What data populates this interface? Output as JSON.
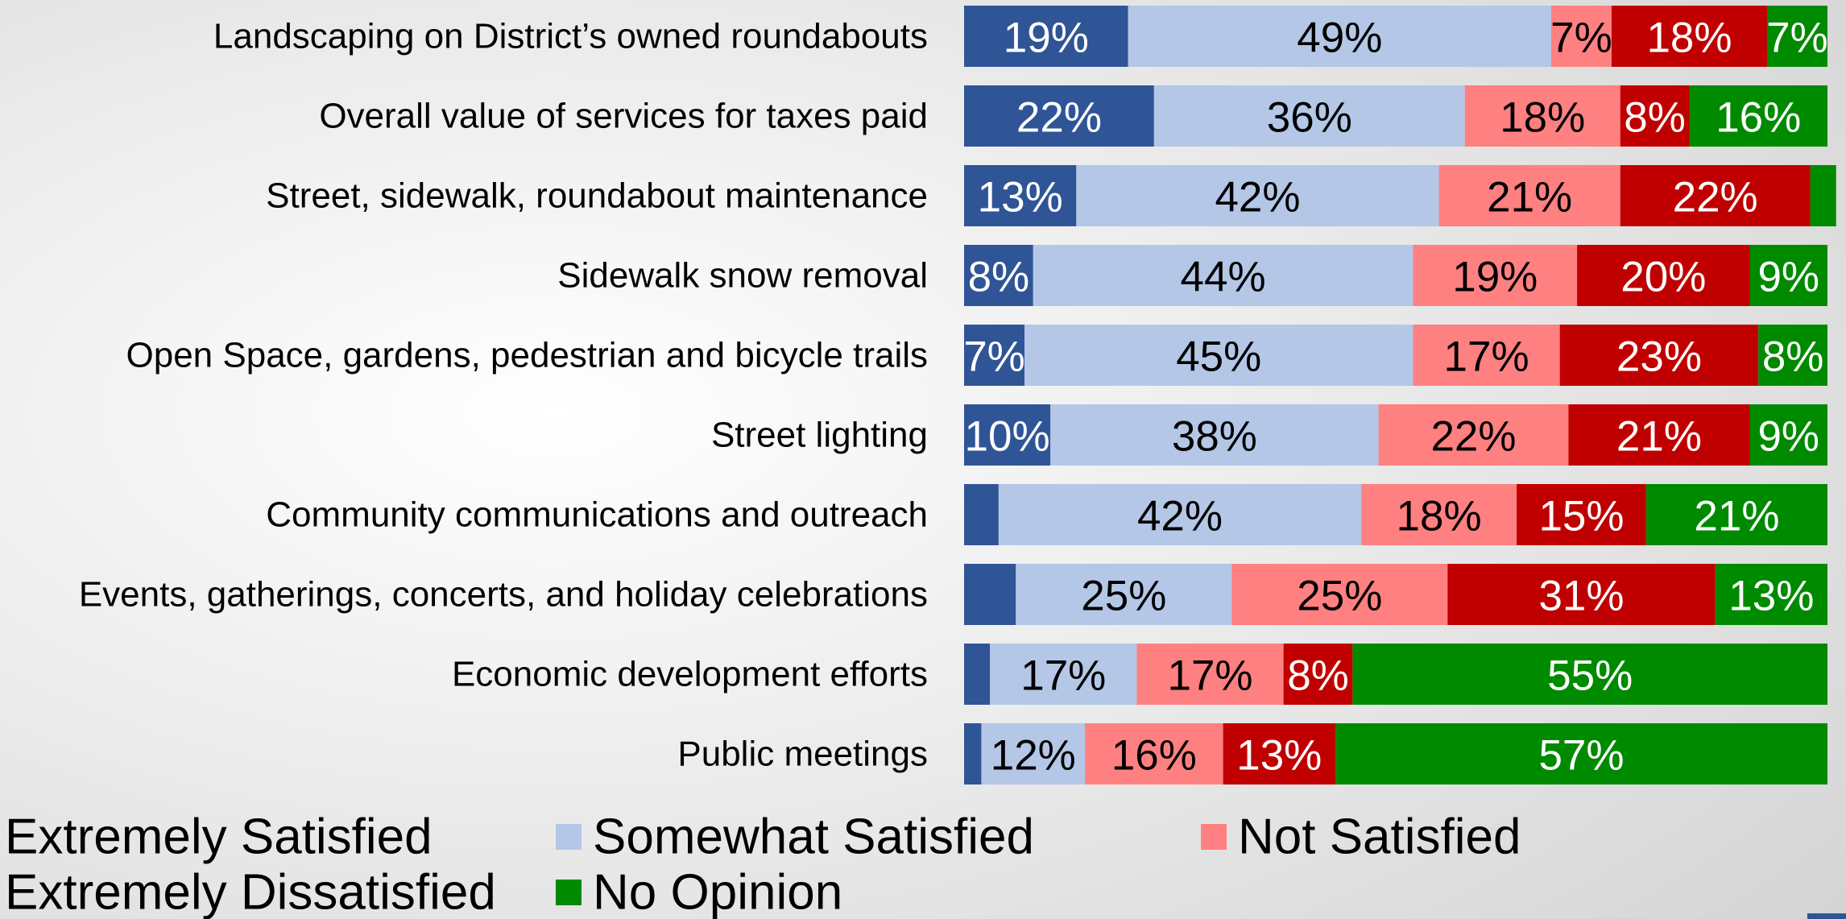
{
  "chart_data": {
    "type": "stacked-bar-horizontal",
    "categories": [
      "Landscaping on District’s owned roundabouts",
      "Overall value of services for taxes paid",
      "Street, sidewalk, roundabout maintenance",
      "Sidewalk snow removal",
      "Open Space, gardens, pedestrian and bicycle trails",
      "Street lighting",
      "Community communications and outreach",
      "Events, gatherings, concerts, and holiday celebrations",
      "Economic development efforts",
      "Public meetings"
    ],
    "xlim": [
      0,
      100
    ],
    "series": [
      {
        "name": "Extremely Satisfied",
        "color": "#2f5597",
        "label_color": "#ffffff",
        "values": [
          19,
          22,
          13,
          8,
          7,
          10,
          4,
          6,
          3,
          2
        ],
        "value_labels": [
          "19%",
          "22%",
          "13%",
          "8%",
          "7%",
          "10%",
          null,
          null,
          null,
          null
        ]
      },
      {
        "name": "Somewhat Satisfied",
        "color": "#b4c7e7",
        "label_color": "#000000",
        "values": [
          49,
          36,
          42,
          44,
          45,
          38,
          42,
          25,
          17,
          12
        ],
        "value_labels": [
          "49%",
          "36%",
          "42%",
          "44%",
          "45%",
          "38%",
          "42%",
          "25%",
          "17%",
          "12%"
        ]
      },
      {
        "name": "Not Satisfied",
        "color": "#ff8080",
        "label_color": "#000000",
        "values": [
          7,
          18,
          21,
          19,
          17,
          22,
          18,
          25,
          17,
          16
        ],
        "value_labels": [
          "7%",
          "18%",
          "21%",
          "19%",
          "17%",
          "22%",
          "18%",
          "25%",
          "17%",
          "16%"
        ]
      },
      {
        "name": "Extremely Dissatisfied",
        "color": "#c00000",
        "label_color": "#ffffff",
        "values": [
          18,
          8,
          22,
          20,
          23,
          21,
          15,
          31,
          8,
          13
        ],
        "value_labels": [
          "18%",
          "8%",
          "22%",
          "20%",
          "23%",
          "21%",
          "15%",
          "31%",
          "8%",
          "13%"
        ]
      },
      {
        "name": "No Opinion",
        "color": "#008a00",
        "label_color": "#ffffff",
        "values": [
          7,
          16,
          3,
          9,
          8,
          9,
          21,
          13,
          55,
          57
        ],
        "value_labels": [
          "7%",
          "16%",
          null,
          "9%",
          "8%",
          "9%",
          "21%",
          "13%",
          "55%",
          "57%"
        ]
      }
    ]
  }
}
